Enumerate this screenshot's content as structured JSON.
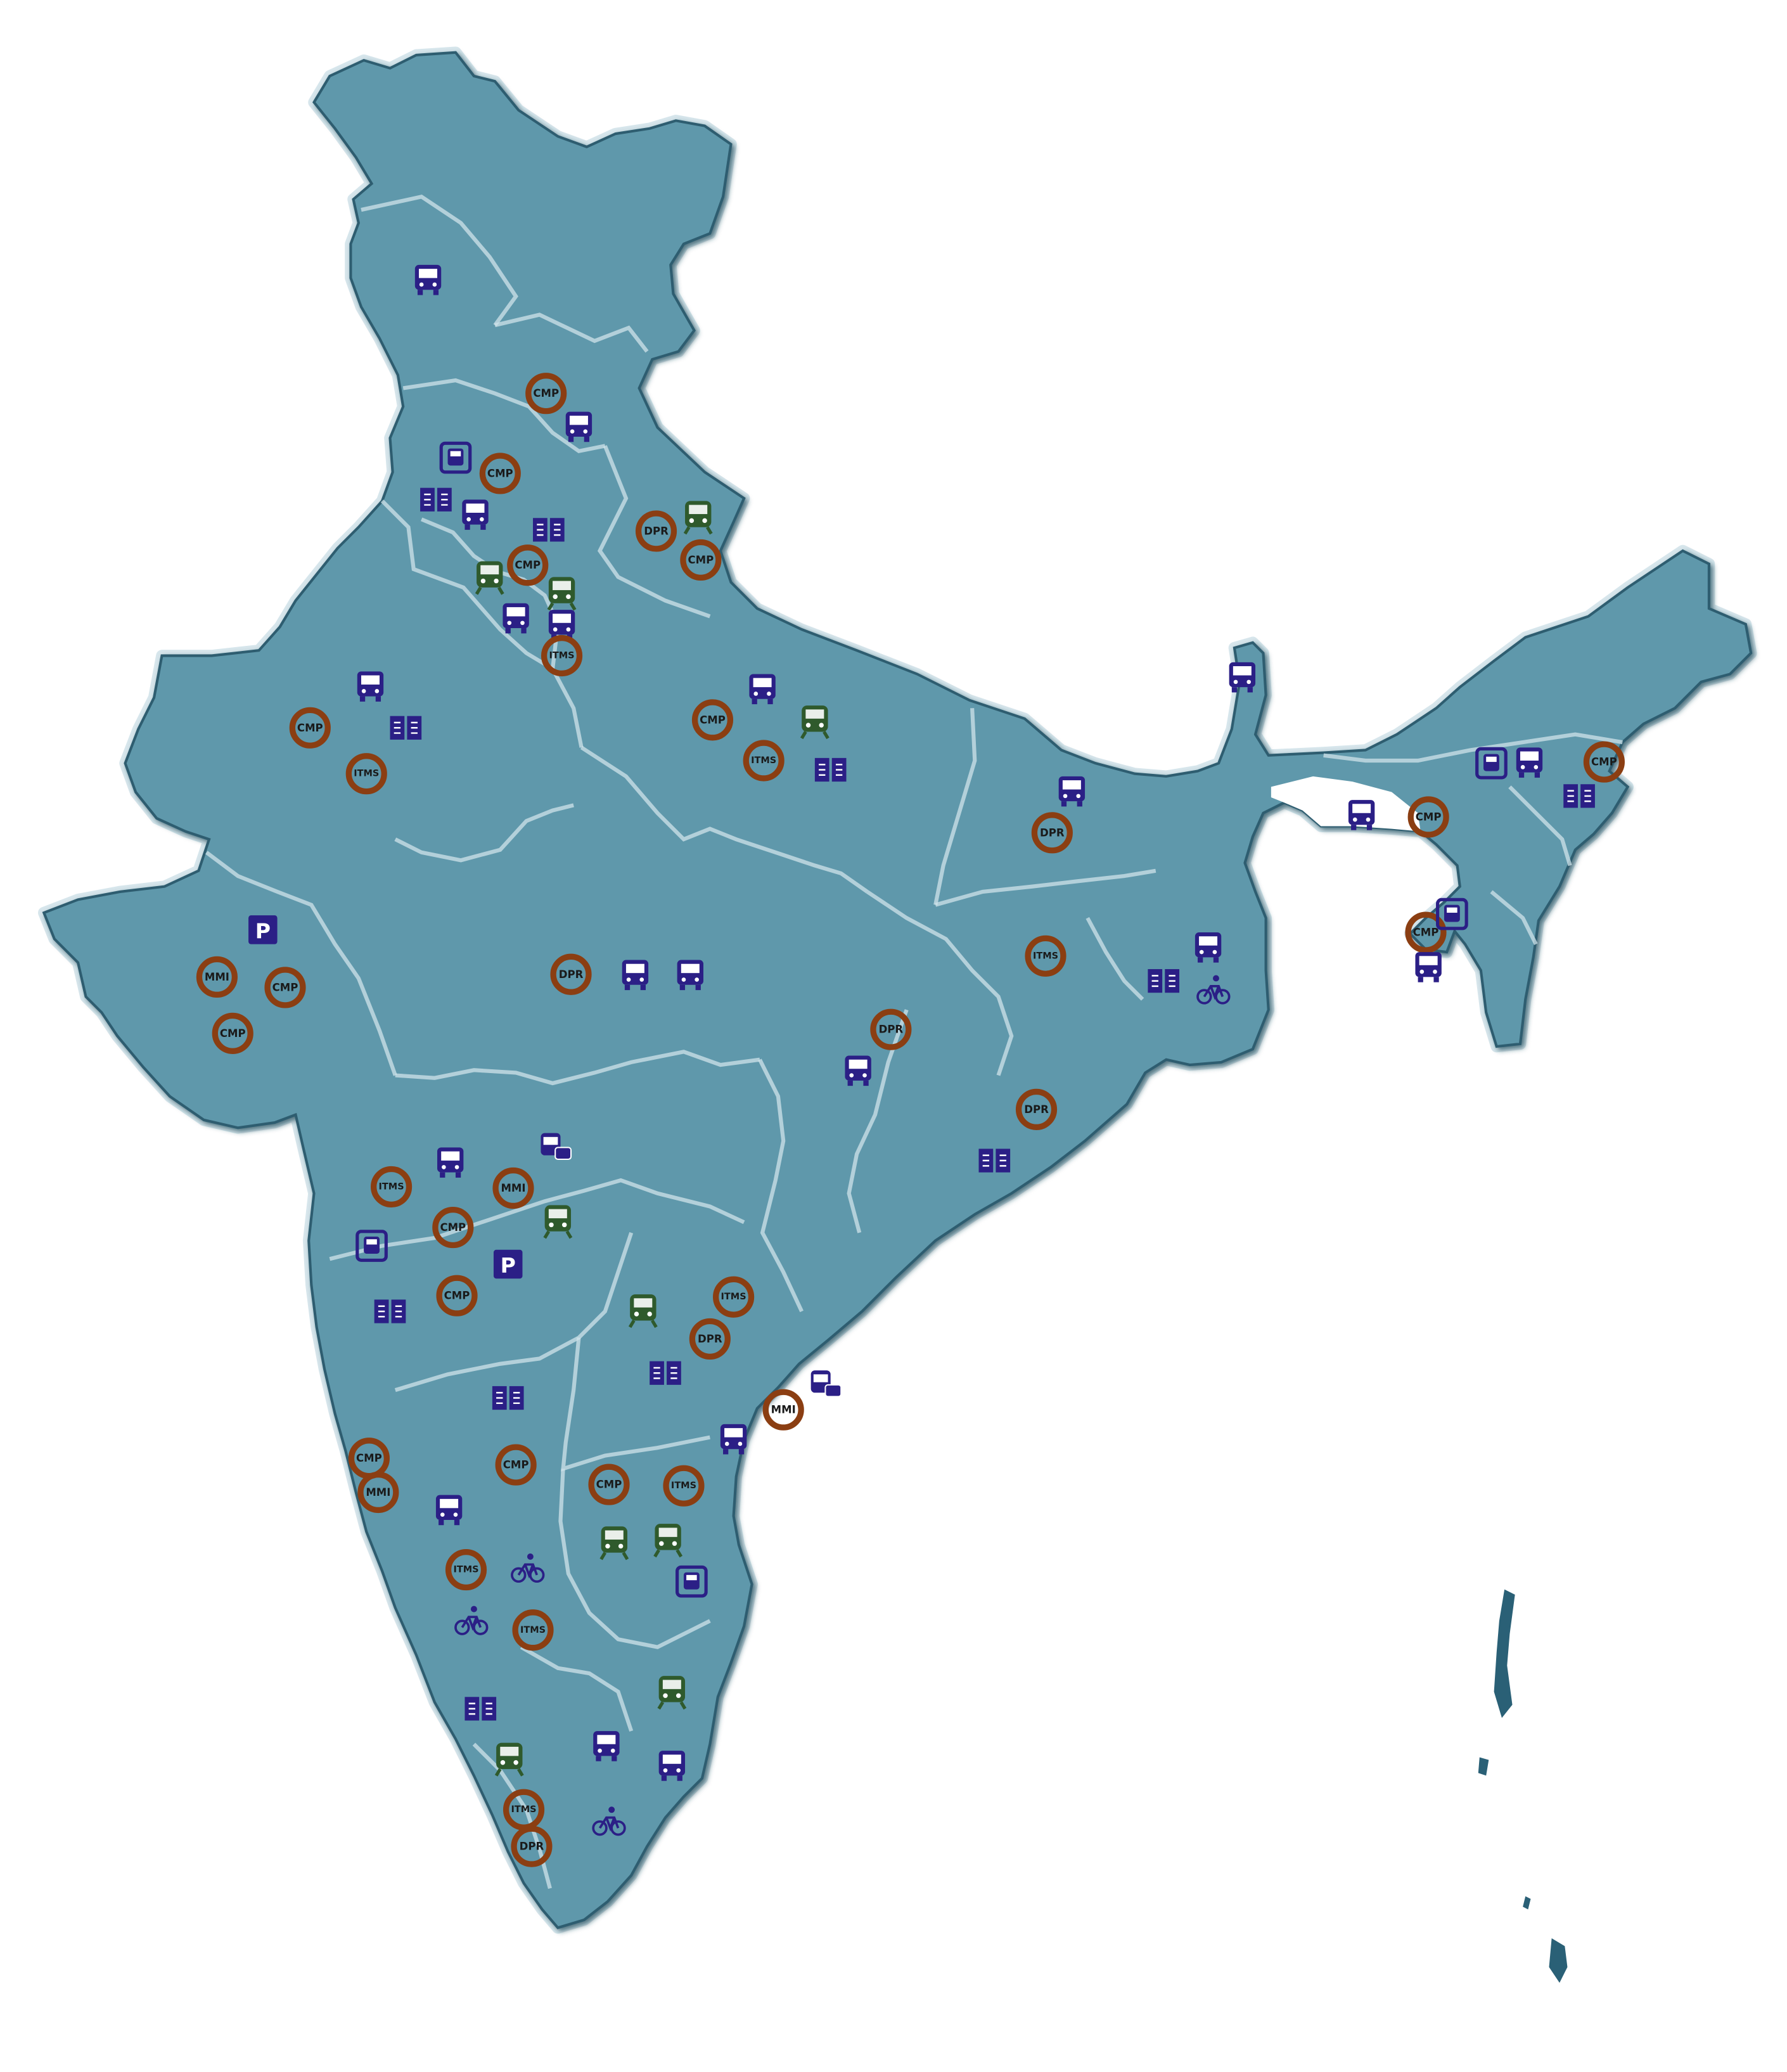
{
  "colors": {
    "land": "#5e98ab",
    "land_edge": "#2e5d70",
    "outline_glow": "#d7e6ec",
    "state_border": "#cfe3ea",
    "icon_blue": "#2b1f86",
    "icon_green": "#2f5a2c",
    "ring_brown": "#8b3e12",
    "islands": "#2a6076"
  },
  "legend_codes": [
    "CMP",
    "DPR",
    "ITMS",
    "MMI"
  ],
  "markers": [
    {
      "type": "bus"
    },
    {
      "type": "ring",
      "label": "CMP"
    },
    {
      "type": "bus"
    },
    {
      "type": "bus-stop"
    },
    {
      "type": "ring",
      "label": "CMP"
    },
    {
      "type": "book"
    },
    {
      "type": "bus"
    },
    {
      "type": "book"
    },
    {
      "type": "metro"
    },
    {
      "type": "ring",
      "label": "DPR"
    },
    {
      "type": "ring",
      "label": "CMP"
    },
    {
      "type": "metro"
    },
    {
      "type": "ring",
      "label": "CMP"
    },
    {
      "type": "metro"
    },
    {
      "type": "bus"
    },
    {
      "type": "bus"
    },
    {
      "type": "ring",
      "label": "ITMS"
    },
    {
      "type": "bus"
    },
    {
      "type": "ring",
      "label": "CMP"
    },
    {
      "type": "book"
    },
    {
      "type": "ring",
      "label": "ITMS"
    },
    {
      "type": "bus"
    },
    {
      "type": "ring",
      "label": "CMP"
    },
    {
      "type": "metro"
    },
    {
      "type": "ring",
      "label": "ITMS"
    },
    {
      "type": "book"
    },
    {
      "type": "bus"
    },
    {
      "type": "ring",
      "label": "DPR"
    },
    {
      "type": "bus"
    },
    {
      "type": "bus-stop"
    },
    {
      "type": "bus"
    },
    {
      "type": "ring",
      "label": "CMP"
    },
    {
      "type": "bus"
    },
    {
      "type": "ring",
      "label": "CMP"
    },
    {
      "type": "book"
    },
    {
      "type": "ring",
      "label": "CMP"
    },
    {
      "type": "bus"
    },
    {
      "type": "bus-stop"
    },
    {
      "type": "parking"
    },
    {
      "type": "ring",
      "label": "MMI"
    },
    {
      "type": "ring",
      "label": "CMP"
    },
    {
      "type": "ring",
      "label": "CMP"
    },
    {
      "type": "ring",
      "label": "DPR"
    },
    {
      "type": "bus"
    },
    {
      "type": "bus"
    },
    {
      "type": "ring",
      "label": "ITMS"
    },
    {
      "type": "bus"
    },
    {
      "type": "book"
    },
    {
      "type": "bicycle"
    },
    {
      "type": "bus"
    },
    {
      "type": "ring",
      "label": "DPR"
    },
    {
      "type": "ring",
      "label": "DPR"
    },
    {
      "type": "book"
    },
    {
      "type": "bus"
    },
    {
      "type": "bus-car"
    },
    {
      "type": "ring",
      "label": "ITMS"
    },
    {
      "type": "ring",
      "label": "MMI"
    },
    {
      "type": "metro"
    },
    {
      "type": "bus-stop"
    },
    {
      "type": "ring",
      "label": "CMP"
    },
    {
      "type": "parking"
    },
    {
      "type": "ring",
      "label": "CMP"
    },
    {
      "type": "book"
    },
    {
      "type": "ring",
      "label": "ITMS"
    },
    {
      "type": "metro"
    },
    {
      "type": "ring",
      "label": "DPR"
    },
    {
      "type": "book"
    },
    {
      "type": "book"
    },
    {
      "type": "bus-car"
    },
    {
      "type": "ring",
      "label": "MMI"
    },
    {
      "type": "bus"
    },
    {
      "type": "ring",
      "label": "CMP"
    },
    {
      "type": "ring",
      "label": "CMP"
    },
    {
      "type": "ring",
      "label": "MMI"
    },
    {
      "type": "bus"
    },
    {
      "type": "ring",
      "label": "CMP"
    },
    {
      "type": "ring",
      "label": "ITMS"
    },
    {
      "type": "metro"
    },
    {
      "type": "metro"
    },
    {
      "type": "ring",
      "label": "ITMS"
    },
    {
      "type": "bicycle"
    },
    {
      "type": "bus-stop"
    },
    {
      "type": "bicycle"
    },
    {
      "type": "ring",
      "label": "ITMS"
    },
    {
      "type": "book"
    },
    {
      "type": "metro"
    },
    {
      "type": "metro"
    },
    {
      "type": "bus"
    },
    {
      "type": "bus"
    },
    {
      "type": "ring",
      "label": "ITMS"
    },
    {
      "type": "bicycle"
    },
    {
      "type": "ring",
      "label": "DPR"
    }
  ]
}
